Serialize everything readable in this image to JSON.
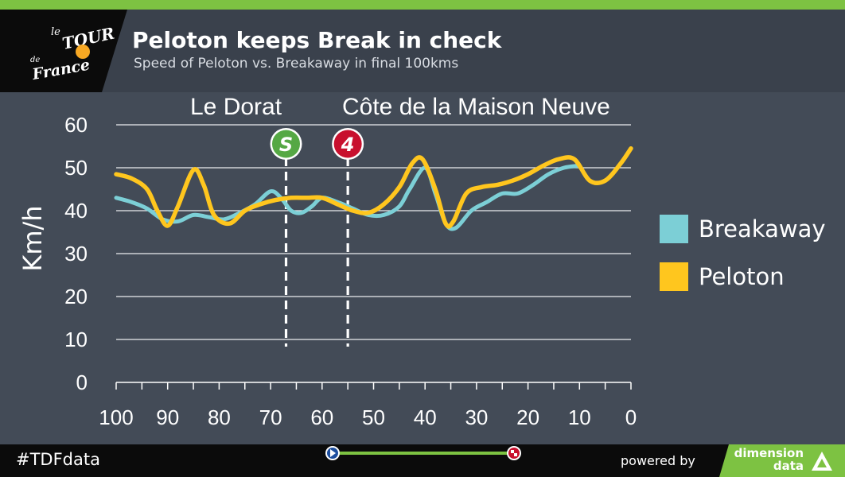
{
  "header": {
    "title": "Peloton keeps Break in check",
    "subtitle": "Speed of Peloton vs. Breakaway in final 100kms",
    "logo_text": {
      "line1": "le",
      "line2": "TOUR",
      "line3": "de",
      "line4": "France"
    }
  },
  "footer": {
    "hashtag": "#TDFdata",
    "powered_by": "powered by",
    "brand_line1": "dimension",
    "brand_line2": "data"
  },
  "colors": {
    "breakaway": "#7ccfd6",
    "peloton": "#ffc61e",
    "sprint_badge": "#55a844",
    "climb_badge": "#c8102e",
    "accent_green": "#7dc242"
  },
  "chart_data": {
    "type": "line",
    "title": "Peloton keeps Break in check",
    "xlabel": "",
    "ylabel": "Km/h",
    "xlim": [
      100,
      0
    ],
    "ylim": [
      0,
      60
    ],
    "xticks": [
      100,
      90,
      80,
      70,
      60,
      50,
      40,
      30,
      20,
      10,
      0
    ],
    "yticks": [
      0,
      10,
      20,
      30,
      40,
      50,
      60
    ],
    "grid": true,
    "legend_position": "right",
    "series": [
      {
        "name": "Breakaway",
        "color": "#7ccfd6",
        "x": [
          100,
          97,
          94,
          91,
          88,
          85,
          82,
          79,
          76,
          73,
          70,
          68,
          66,
          64,
          62,
          60,
          57,
          54,
          51,
          48,
          45,
          43,
          40,
          38,
          36,
          34,
          31,
          28,
          25,
          22,
          19,
          16,
          13,
          10
        ],
        "y": [
          43,
          42,
          40.5,
          38,
          37.5,
          39,
          38.5,
          38,
          39.5,
          41.5,
          44.5,
          43,
          40,
          39.5,
          41,
          43,
          42,
          40.5,
          39,
          39,
          41,
          45,
          50,
          44,
          37,
          36,
          40,
          42,
          44,
          44,
          46,
          48.5,
          50,
          50.5
        ]
      },
      {
        "name": "Peloton",
        "color": "#ffc61e",
        "x": [
          100,
          97,
          94,
          92,
          90,
          88,
          85,
          83,
          81,
          78,
          75,
          72,
          69,
          66,
          63,
          60,
          57,
          54,
          51,
          48,
          45,
          42.5,
          40.5,
          38,
          36,
          34.5,
          32,
          29,
          26,
          23,
          20,
          17,
          14,
          11,
          8,
          5,
          2,
          0
        ],
        "y": [
          48.5,
          47.5,
          45,
          40,
          36.5,
          41,
          49.5,
          46,
          39,
          37,
          40,
          41.5,
          42.5,
          43,
          43,
          43,
          41.5,
          40,
          39.5,
          41.5,
          45.5,
          51,
          52,
          45,
          37,
          37.5,
          44,
          45.5,
          46,
          47,
          48.5,
          50.5,
          52,
          52,
          47,
          47,
          51,
          54.5
        ]
      }
    ],
    "annotations": [
      {
        "label": "Le Dorat",
        "x": 67,
        "badge": "S",
        "badge_type": "sprint"
      },
      {
        "label": "Côte de la Maison Neuve",
        "x": 55,
        "badge": "4",
        "badge_type": "climb"
      }
    ]
  }
}
